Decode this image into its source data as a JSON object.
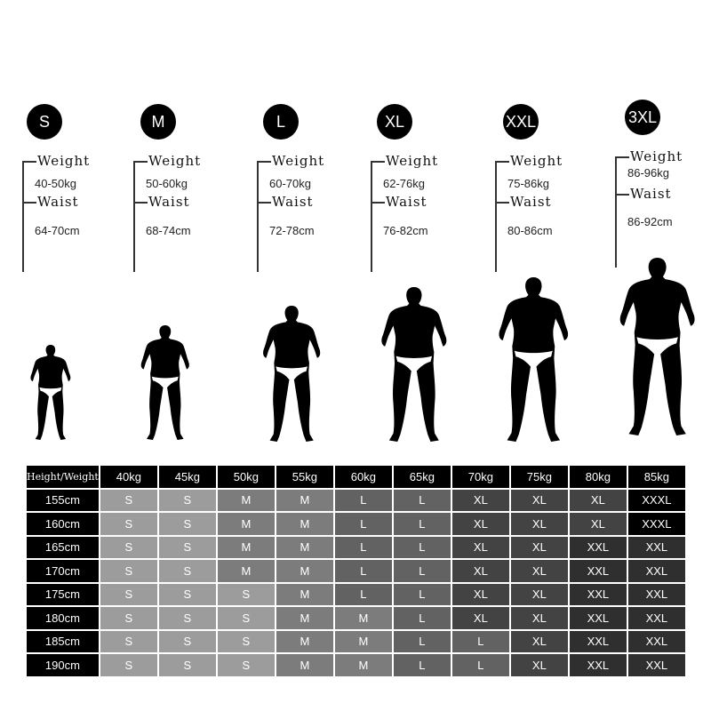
{
  "sizes": [
    {
      "label": "S",
      "weight_label": "Weight",
      "weight": "40-50kg",
      "waist_label": "Waist",
      "waist": "64-70cm"
    },
    {
      "label": "M",
      "weight_label": "Weight",
      "weight": "50-60kg",
      "waist_label": "Waist",
      "waist": "68-74cm"
    },
    {
      "label": "L",
      "weight_label": "Weight",
      "weight": "60-70kg",
      "waist_label": "Waist",
      "waist": "72-78cm"
    },
    {
      "label": "XL",
      "weight_label": "Weight",
      "weight": "62-76kg",
      "waist_label": "Waist",
      "waist": "76-82cm"
    },
    {
      "label": "XXL",
      "weight_label": "Weight",
      "weight": "75-86kg",
      "waist_label": "Waist",
      "waist": "80-86cm"
    },
    {
      "label": "3XL",
      "weight_label": "Weight",
      "weight": "86-96kg",
      "waist_label": "Waist",
      "waist": "86-92cm"
    }
  ],
  "table": {
    "corner": "Height/Weight",
    "columns": [
      "40kg",
      "45kg",
      "50kg",
      "55kg",
      "60kg",
      "65kg",
      "70kg",
      "75kg",
      "80kg",
      "85kg"
    ],
    "rows": [
      {
        "height": "155cm",
        "cells": [
          "S",
          "S",
          "M",
          "M",
          "L",
          "L",
          "XL",
          "XL",
          "XL",
          "XXXL"
        ]
      },
      {
        "height": "160cm",
        "cells": [
          "S",
          "S",
          "M",
          "M",
          "L",
          "L",
          "XL",
          "XL",
          "XL",
          "XXXL"
        ]
      },
      {
        "height": "165cm",
        "cells": [
          "S",
          "S",
          "M",
          "M",
          "L",
          "L",
          "XL",
          "XL",
          "XXL",
          "XXL"
        ]
      },
      {
        "height": "170cm",
        "cells": [
          "S",
          "S",
          "M",
          "M",
          "L",
          "L",
          "XL",
          "XL",
          "XXL",
          "XXL"
        ]
      },
      {
        "height": "175cm",
        "cells": [
          "S",
          "S",
          "S",
          "M",
          "L",
          "L",
          "XL",
          "XL",
          "XXL",
          "XXL"
        ]
      },
      {
        "height": "180cm",
        "cells": [
          "S",
          "S",
          "S",
          "M",
          "M",
          "L",
          "XL",
          "XL",
          "XXL",
          "XXL"
        ]
      },
      {
        "height": "185cm",
        "cells": [
          "S",
          "S",
          "S",
          "M",
          "M",
          "L",
          "L",
          "XL",
          "XXL",
          "XXL"
        ]
      },
      {
        "height": "190cm",
        "cells": [
          "S",
          "S",
          "S",
          "M",
          "M",
          "L",
          "L",
          "XL",
          "XXL",
          "XXL"
        ]
      }
    ]
  },
  "size_colors": {
    "S": "#9c9c9c",
    "M": "#7c7c7c",
    "L": "#626262",
    "XL": "#434343",
    "XXL": "#2f2f2f",
    "XXXL": "#000000"
  }
}
